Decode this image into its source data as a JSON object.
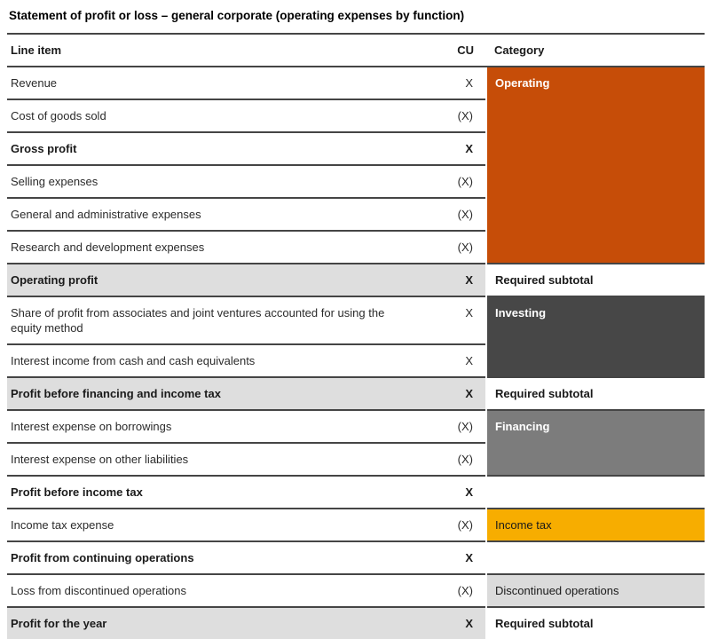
{
  "title": "Statement of profit or loss – general corporate (operating expenses by function)",
  "table": {
    "headers": {
      "line_item": "Line item",
      "cu": "CU",
      "category": "Category"
    },
    "rows": [
      {
        "line_item": "Revenue",
        "cu": "X",
        "bold": false,
        "shaded": false,
        "category": {
          "label": "Operating",
          "rowspan": 6,
          "style": "operating"
        }
      },
      {
        "line_item": "Cost of goods sold",
        "cu": "(X)",
        "bold": false,
        "shaded": false
      },
      {
        "line_item": "Gross profit",
        "cu": "X",
        "bold": true,
        "shaded": false
      },
      {
        "line_item": "Selling expenses",
        "cu": "(X)",
        "bold": false,
        "shaded": false
      },
      {
        "line_item": "General and administrative expenses",
        "cu": "(X)",
        "bold": false,
        "shaded": false
      },
      {
        "line_item": "Research and development expenses",
        "cu": "(X)",
        "bold": false,
        "shaded": false
      },
      {
        "line_item": "Operating profit",
        "cu": "X",
        "bold": true,
        "shaded": true,
        "category": {
          "label": "Required subtotal",
          "rowspan": 1,
          "style": "subtotal"
        }
      },
      {
        "line_item": "Share of profit from associates and joint ventures accounted for using the equity method",
        "cu": "X",
        "bold": false,
        "shaded": false,
        "category": {
          "label": "Investing",
          "rowspan": 2,
          "style": "investing"
        }
      },
      {
        "line_item": "Interest income from cash and cash equivalents",
        "cu": "X",
        "bold": false,
        "shaded": false
      },
      {
        "line_item": "Profit before financing and income tax",
        "cu": "X",
        "bold": true,
        "shaded": true,
        "category": {
          "label": "Required subtotal",
          "rowspan": 1,
          "style": "subtotal"
        }
      },
      {
        "line_item": "Interest expense on borrowings",
        "cu": "(X)",
        "bold": false,
        "shaded": false,
        "category": {
          "label": "Financing",
          "rowspan": 2,
          "style": "financing"
        }
      },
      {
        "line_item": "Interest expense on other liabilities",
        "cu": "(X)",
        "bold": false,
        "shaded": false
      },
      {
        "line_item": "Profit before income tax",
        "cu": "X",
        "bold": true,
        "shaded": false,
        "category": {
          "label": "",
          "rowspan": 1,
          "style": "empty"
        }
      },
      {
        "line_item": "Income tax expense",
        "cu": "(X)",
        "bold": false,
        "shaded": false,
        "category": {
          "label": "Income tax",
          "rowspan": 1,
          "style": "income_tax"
        }
      },
      {
        "line_item": "Profit from continuing operations",
        "cu": "X",
        "bold": true,
        "shaded": false,
        "category": {
          "label": "",
          "rowspan": 1,
          "style": "empty"
        }
      },
      {
        "line_item": "Loss from discontinued operations",
        "cu": "(X)",
        "bold": false,
        "shaded": false,
        "category": {
          "label": "Discontinued operations",
          "rowspan": 1,
          "style": "discontinued"
        }
      },
      {
        "line_item": "Profit for the year",
        "cu": "X",
        "bold": true,
        "shaded": true,
        "category": {
          "label": "Required subtotal",
          "rowspan": 1,
          "style": "subtotal"
        }
      }
    ],
    "colors": {
      "operating": "#C64D08",
      "investing": "#474747",
      "financing": "#7C7C7C",
      "income_tax": "#F7AD00",
      "discontinued": "#DBDBDB",
      "subtotal_row_band": "#DEDEDE",
      "border": "#454545"
    }
  }
}
